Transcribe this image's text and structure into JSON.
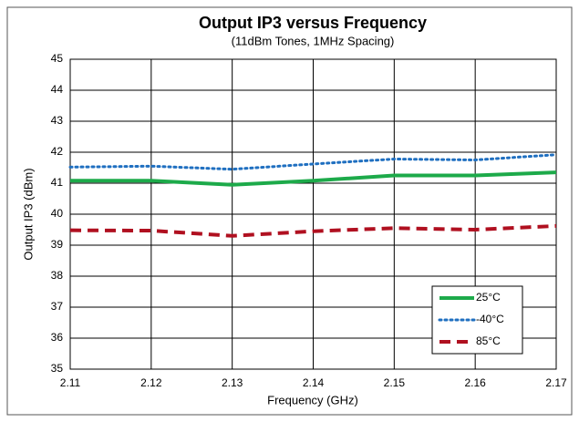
{
  "chart_data": {
    "type": "line",
    "title": "Output IP3 versus Frequency",
    "subtitle": "(11dBm Tones, 1MHz Spacing)",
    "x_label": "Frequency (GHz)",
    "y_label": "Output IP3 (dBm)",
    "x": [
      2.11,
      2.12,
      2.13,
      2.14,
      2.15,
      2.16,
      2.17
    ],
    "series": [
      {
        "name": "25°C",
        "color": "#1daa4a",
        "dash": "solid",
        "values": [
          41.08,
          41.08,
          40.95,
          41.08,
          41.25,
          41.25,
          41.35
        ]
      },
      {
        "name": "-40°C",
        "color": "#1f6fc0",
        "dash": "dotted",
        "values": [
          41.52,
          41.55,
          41.45,
          41.62,
          41.78,
          41.75,
          41.92
        ]
      },
      {
        "name": "85°C",
        "color": "#b01020",
        "dash": "dashed",
        "values": [
          39.48,
          39.47,
          39.3,
          39.45,
          39.55,
          39.5,
          39.62
        ]
      }
    ],
    "xlim": [
      2.11,
      2.17
    ],
    "xticks": [
      2.11,
      2.12,
      2.13,
      2.14,
      2.15,
      2.16,
      2.17
    ],
    "ylim": [
      35,
      45
    ],
    "yticks": [
      35,
      36,
      37,
      38,
      39,
      40,
      41,
      42,
      43,
      44,
      45
    ],
    "grid": true,
    "legend": "lower right"
  }
}
